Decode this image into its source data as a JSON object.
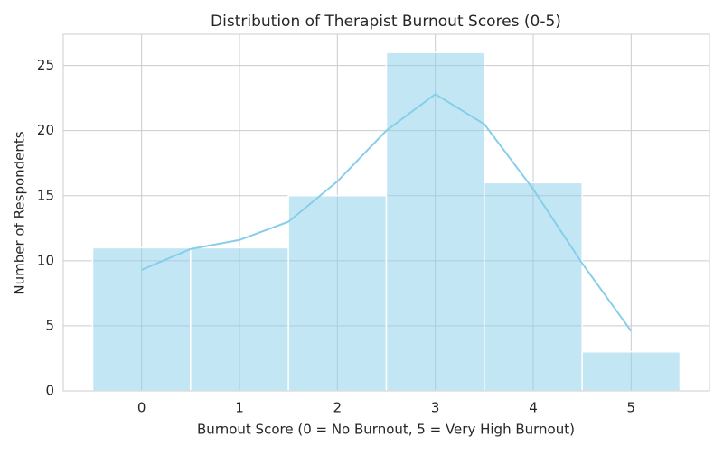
{
  "chart_data": {
    "type": "histogram",
    "title": "Distribution of Therapist Burnout Scores (0-5)",
    "x_label": "Burnout Score (0 = No Burnout, 5 = Very High Burnout)",
    "y_label": "Number of Respondents",
    "bins": [
      -0.5,
      0.5,
      1.5,
      2.5,
      3.5,
      4.5,
      5.5
    ],
    "values": [
      11,
      11,
      15,
      26,
      16,
      3
    ],
    "color": "#87ceeb",
    "kde": {
      "x": [
        0,
        0.5,
        1,
        1.5,
        2,
        2.5,
        3,
        3.5,
        4,
        4.5,
        5
      ],
      "values": [
        9.3,
        10.9,
        11.6,
        13,
        16.1,
        20,
        22.8,
        20.5,
        15.5,
        9.8,
        4.6
      ]
    },
    "xlim": [
      -0.8,
      5.8
    ],
    "ylim": [
      0,
      27.4
    ],
    "xticks": [
      0,
      1,
      2,
      3,
      4,
      5
    ],
    "yticks": [
      0,
      5,
      10,
      15,
      20,
      25
    ],
    "grid": true
  }
}
